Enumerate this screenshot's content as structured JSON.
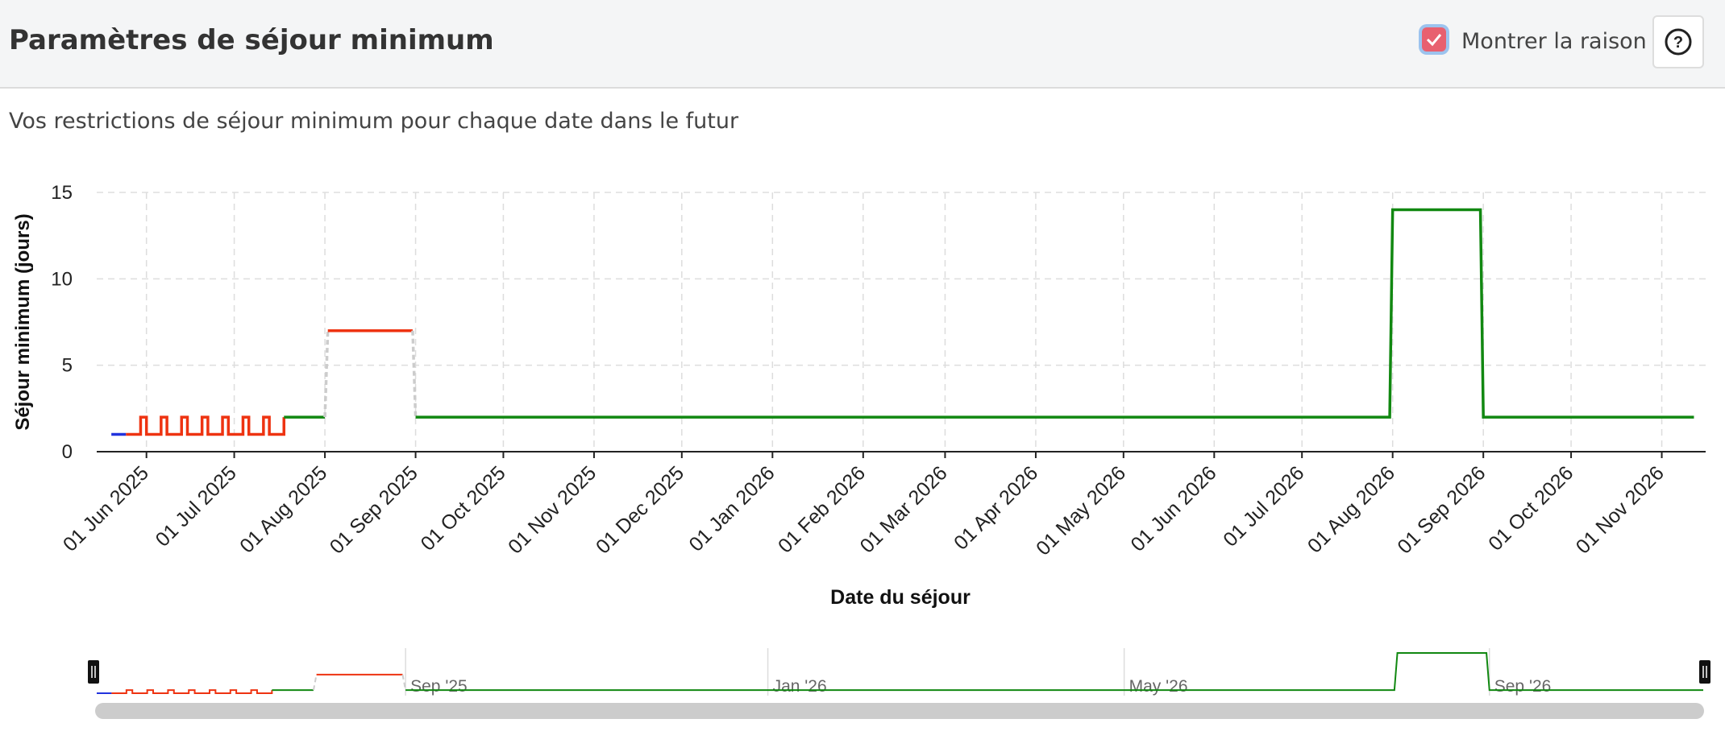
{
  "header": {
    "title": "Paramètres de séjour minimum",
    "show_reason": "Montrer la raison",
    "help_icon": "?"
  },
  "description": "Vos restrictions de séjour minimum pour chaque date dans le futur",
  "chart_data": {
    "type": "line",
    "y_label": "Séjour minimum (jours)",
    "x_label": "Date du séjour",
    "ylim": [
      0,
      15
    ],
    "yticks": [
      0,
      5,
      10,
      15
    ],
    "xlim": [
      "2025-05-15",
      "2026-11-16"
    ],
    "xticks": [
      {
        "value": "2025-06-01",
        "label": "01 Jun 2025"
      },
      {
        "value": "2025-07-01",
        "label": "01 Jul 2025"
      },
      {
        "value": "2025-08-01",
        "label": "01 Aug 2025"
      },
      {
        "value": "2025-09-01",
        "label": "01 Sep 2025"
      },
      {
        "value": "2025-10-01",
        "label": "01 Oct 2025"
      },
      {
        "value": "2025-11-01",
        "label": "01 Nov 2025"
      },
      {
        "value": "2025-12-01",
        "label": "01 Dec 2025"
      },
      {
        "value": "2026-01-01",
        "label": "01 Jan 2026"
      },
      {
        "value": "2026-02-01",
        "label": "01 Feb 2026"
      },
      {
        "value": "2026-03-01",
        "label": "01 Mar 2026"
      },
      {
        "value": "2026-04-01",
        "label": "01 Apr 2026"
      },
      {
        "value": "2026-05-01",
        "label": "01 May 2026"
      },
      {
        "value": "2026-06-01",
        "label": "01 Jun 2026"
      },
      {
        "value": "2026-07-01",
        "label": "01 Jul 2026"
      },
      {
        "value": "2026-08-01",
        "label": "01 Aug 2026"
      },
      {
        "value": "2026-09-01",
        "label": "01 Sep 2026"
      },
      {
        "value": "2026-10-01",
        "label": "01 Oct 2026"
      },
      {
        "value": "2026-11-01",
        "label": "01 Nov 2026"
      }
    ],
    "grid": true,
    "navigator_ticks": [
      {
        "value": "2025-09-01",
        "label": "Sep '25"
      },
      {
        "value": "2026-01-01",
        "label": "Jan '26"
      },
      {
        "value": "2026-05-01",
        "label": "May '26"
      },
      {
        "value": "2026-09-01",
        "label": "Sep '26"
      }
    ],
    "series": [
      {
        "color": "#2233dd",
        "x": [
          "2025-05-20",
          "2025-05-25"
        ],
        "values": [
          1,
          1
        ]
      },
      {
        "color": "#ee3311",
        "x": [
          "2025-05-25",
          "2025-05-30",
          "2025-05-30",
          "2025-06-01",
          "2025-06-01",
          "2025-06-06",
          "2025-06-06",
          "2025-06-08",
          "2025-06-08",
          "2025-06-13",
          "2025-06-13",
          "2025-06-15",
          "2025-06-15",
          "2025-06-20",
          "2025-06-20",
          "2025-06-22",
          "2025-06-22",
          "2025-06-27",
          "2025-06-27",
          "2025-06-29",
          "2025-06-29",
          "2025-07-04",
          "2025-07-04",
          "2025-07-06",
          "2025-07-06",
          "2025-07-11",
          "2025-07-11",
          "2025-07-13",
          "2025-07-13",
          "2025-07-18",
          "2025-07-18"
        ],
        "values": [
          1,
          1,
          2,
          2,
          1,
          1,
          2,
          2,
          1,
          1,
          2,
          2,
          1,
          1,
          2,
          2,
          1,
          1,
          2,
          2,
          1,
          1,
          2,
          2,
          1,
          1,
          2,
          2,
          1,
          1,
          2
        ]
      },
      {
        "color": "#118811",
        "x": [
          "2025-07-18",
          "2025-08-01"
        ],
        "values": [
          2,
          2
        ]
      },
      {
        "color": "#cccccc",
        "dashed": true,
        "x": [
          "2025-08-01",
          "2025-08-02"
        ],
        "values": [
          2,
          7
        ]
      },
      {
        "color": "#ee3311",
        "x": [
          "2025-08-02",
          "2025-08-31"
        ],
        "values": [
          7,
          7
        ]
      },
      {
        "color": "#cccccc",
        "dashed": true,
        "x": [
          "2025-08-31",
          "2025-09-01"
        ],
        "values": [
          7,
          2
        ]
      },
      {
        "color": "#118811",
        "x": [
          "2025-09-01",
          "2026-07-31",
          "2026-08-01",
          "2026-08-31",
          "2026-09-01",
          "2026-11-12"
        ],
        "values": [
          2,
          2,
          14,
          14,
          2,
          2
        ]
      }
    ]
  }
}
